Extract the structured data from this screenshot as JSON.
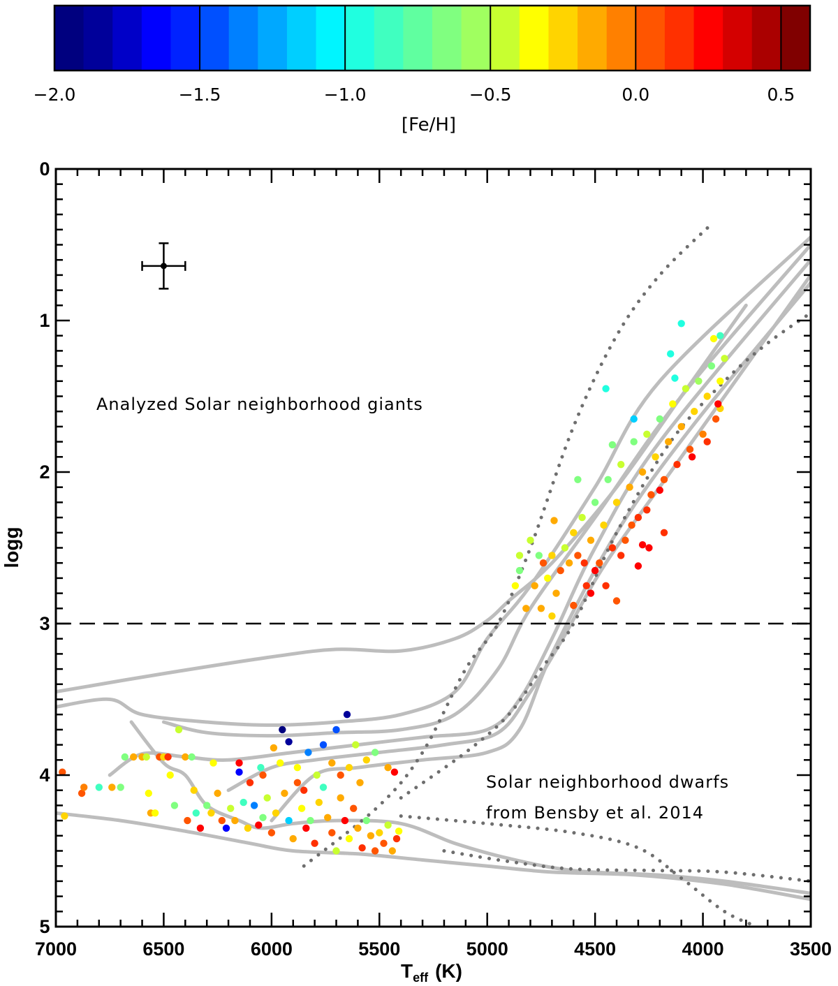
{
  "colorbar": {
    "label": "[Fe/H]",
    "range": [
      -2.0,
      0.6
    ],
    "n_bins": 26,
    "ticks": [
      -2.0,
      -1.5,
      -1.0,
      -0.5,
      0.0,
      0.5
    ],
    "tick_labels": [
      "−2.0",
      "−1.5",
      "−1.0",
      "−0.5",
      "0.0",
      "0.5"
    ],
    "bin_colors": [
      "#00007f",
      "#00009a",
      "#0000c8",
      "#0000ff",
      "#0022ff",
      "#0050ff",
      "#0080ff",
      "#00a8ff",
      "#00cfff",
      "#00f5ff",
      "#20ffe0",
      "#40ffc0",
      "#60ffa0",
      "#80ff80",
      "#a0ff60",
      "#c8ff30",
      "#ffff00",
      "#ffd400",
      "#ffaa00",
      "#ff8000",
      "#ff5500",
      "#ff3000",
      "#ff0000",
      "#d40000",
      "#aa0000",
      "#800000"
    ]
  },
  "chart_data": {
    "type": "scatter",
    "xlabel_main": "T",
    "xlabel_sub": "eff",
    "xlabel_unit": "(K)",
    "ylabel": "logg",
    "xlim": [
      7000,
      3500
    ],
    "ylim": [
      5,
      0
    ],
    "x_ticks": [
      7000,
      6500,
      6000,
      5500,
      5000,
      4500,
      4000,
      3500
    ],
    "y_ticks": [
      0,
      1,
      2,
      3,
      4,
      5
    ],
    "dashed_line_logg": 3,
    "error_bar": {
      "teff": 6500,
      "logg": 0.64,
      "teff_err": 100,
      "logg_err": 0.15
    },
    "annotations": [
      "Analyzed Solar neighborhood giants",
      "Solar neighborhood dwarfs",
      "from Bensby et al. 2014"
    ],
    "isochrones": [
      [
        [
          7000,
          3.45
        ],
        [
          6500,
          3.33
        ],
        [
          6000,
          3.22
        ],
        [
          5700,
          3.17
        ],
        [
          5400,
          3.18
        ],
        [
          5150,
          3.1
        ],
        [
          5000,
          2.98
        ],
        [
          4900,
          2.85
        ],
        [
          4700,
          2.6
        ],
        [
          4400,
          2.1
        ],
        [
          4100,
          1.5
        ],
        [
          3800,
          0.9
        ]
      ],
      [
        [
          7000,
          3.55
        ],
        [
          6750,
          3.5
        ],
        [
          6600,
          3.6
        ],
        [
          6300,
          3.65
        ],
        [
          6000,
          3.67
        ],
        [
          5700,
          3.65
        ],
        [
          5400,
          3.6
        ],
        [
          5150,
          3.45
        ],
        [
          5000,
          3.1
        ],
        [
          4800,
          2.75
        ],
        [
          4500,
          2.1
        ],
        [
          4200,
          1.4
        ],
        [
          3500,
          0.45
        ]
      ],
      [
        [
          6500,
          3.65
        ],
        [
          6300,
          3.72
        ],
        [
          6000,
          3.74
        ],
        [
          5700,
          3.72
        ],
        [
          5400,
          3.7
        ],
        [
          5150,
          3.6
        ],
        [
          4950,
          3.3
        ],
        [
          4800,
          2.9
        ],
        [
          4500,
          2.3
        ],
        [
          4100,
          1.5
        ],
        [
          3500,
          0.5
        ]
      ],
      [
        [
          6650,
          3.65
        ],
        [
          6500,
          3.92
        ],
        [
          6400,
          4.0
        ],
        [
          6300,
          4.2
        ],
        [
          6150,
          4.3
        ],
        [
          6050,
          4.35
        ],
        [
          5900,
          4.32
        ],
        [
          5700,
          4.3
        ],
        [
          5400,
          4.32
        ],
        [
          5150,
          4.45
        ],
        [
          4900,
          4.55
        ],
        [
          4600,
          4.63
        ],
        [
          4200,
          4.66
        ],
        [
          3900,
          4.7
        ],
        [
          3500,
          4.78
        ]
      ],
      [
        [
          6750,
          4.0
        ],
        [
          6600,
          3.86
        ],
        [
          6400,
          3.88
        ],
        [
          6200,
          3.9
        ],
        [
          5900,
          3.85
        ],
        [
          5600,
          3.8
        ],
        [
          5300,
          3.75
        ],
        [
          5000,
          3.7
        ],
        [
          4850,
          3.5
        ],
        [
          4700,
          3.1
        ],
        [
          4500,
          2.5
        ],
        [
          4200,
          1.8
        ],
        [
          3500,
          0.6
        ]
      ],
      [
        [
          6200,
          4.1
        ],
        [
          6000,
          3.95
        ],
        [
          5800,
          3.9
        ],
        [
          5500,
          3.85
        ],
        [
          5200,
          3.8
        ],
        [
          4950,
          3.72
        ],
        [
          4800,
          3.45
        ],
        [
          4650,
          3.1
        ],
        [
          4450,
          2.6
        ],
        [
          4100,
          1.9
        ],
        [
          3500,
          0.7
        ]
      ],
      [
        [
          7000,
          4.25
        ],
        [
          6700,
          4.3
        ],
        [
          6400,
          4.37
        ],
        [
          6100,
          4.45
        ],
        [
          5900,
          4.5
        ],
        [
          5600,
          4.52
        ],
        [
          5300,
          4.56
        ],
        [
          5000,
          4.6
        ],
        [
          4700,
          4.64
        ],
        [
          4300,
          4.66
        ],
        [
          3900,
          4.72
        ],
        [
          3500,
          4.82
        ]
      ],
      [
        [
          6000,
          4.3
        ],
        [
          5800,
          4.0
        ],
        [
          5600,
          3.95
        ],
        [
          5300,
          3.9
        ],
        [
          5000,
          3.85
        ],
        [
          4850,
          3.7
        ],
        [
          4700,
          3.2
        ],
        [
          4400,
          2.4
        ],
        [
          4050,
          1.7
        ],
        [
          3500,
          0.75
        ]
      ]
    ],
    "dotted_bounds": [
      [
        [
          5850,
          4.6
        ],
        [
          5500,
          4.2
        ],
        [
          5300,
          3.85
        ],
        [
          5100,
          3.3
        ],
        [
          4950,
          3.0
        ],
        [
          4800,
          2.5
        ],
        [
          4600,
          1.7
        ],
        [
          4400,
          1.1
        ],
        [
          4200,
          0.7
        ],
        [
          3950,
          0.35
        ]
      ],
      [
        [
          5400,
          4.15
        ],
        [
          5100,
          3.85
        ],
        [
          4900,
          3.6
        ],
        [
          4750,
          3.3
        ],
        [
          4600,
          3.0
        ],
        [
          4400,
          2.4
        ],
        [
          4150,
          1.8
        ],
        [
          3900,
          1.4
        ],
        [
          3700,
          1.15
        ],
        [
          3500,
          0.95
        ]
      ],
      [
        [
          5200,
          4.5
        ],
        [
          4900,
          4.57
        ],
        [
          4600,
          4.62
        ],
        [
          4200,
          4.63
        ],
        [
          3900,
          4.64
        ],
        [
          3500,
          4.7
        ]
      ],
      [
        [
          5400,
          4.27
        ],
        [
          5000,
          4.32
        ],
        [
          4600,
          4.38
        ],
        [
          4300,
          4.48
        ],
        [
          4100,
          4.68
        ],
        [
          3900,
          4.9
        ],
        [
          3750,
          5.0
        ]
      ]
    ],
    "points": [
      [
        6970,
        3.98,
        0.0
      ],
      [
        6960,
        4.27,
        -0.3
      ],
      [
        6880,
        4.12,
        0.05
      ],
      [
        6870,
        4.08,
        -0.05
      ],
      [
        6800,
        4.08,
        -0.8
      ],
      [
        6740,
        4.08,
        -0.2
      ],
      [
        6700,
        4.08,
        -0.7
      ],
      [
        6680,
        3.88,
        -0.6
      ],
      [
        6640,
        3.88,
        -0.1
      ],
      [
        6600,
        3.88,
        -0.2
      ],
      [
        6580,
        3.88,
        -0.5
      ],
      [
        6570,
        4.12,
        -0.4
      ],
      [
        6560,
        4.25,
        -0.1
      ],
      [
        6540,
        4.25,
        -0.35
      ],
      [
        6520,
        3.88,
        0.05
      ],
      [
        6500,
        3.88,
        -0.3
      ],
      [
        6480,
        3.88,
        0.1
      ],
      [
        6470,
        4.0,
        -0.4
      ],
      [
        6450,
        4.2,
        -0.6
      ],
      [
        6430,
        3.7,
        -0.5
      ],
      [
        6400,
        3.88,
        -0.2
      ],
      [
        6390,
        4.3,
        0.05
      ],
      [
        6370,
        3.88,
        -0.6
      ],
      [
        6360,
        4.1,
        -0.3
      ],
      [
        6350,
        4.25,
        -0.9
      ],
      [
        6330,
        4.35,
        0.2
      ],
      [
        6300,
        4.2,
        -0.7
      ],
      [
        6280,
        4.25,
        -0.3
      ],
      [
        6270,
        3.92,
        -0.4
      ],
      [
        6250,
        4.12,
        -0.2
      ],
      [
        6230,
        4.3,
        0.0
      ],
      [
        6210,
        4.35,
        -1.6
      ],
      [
        6190,
        4.22,
        -0.5
      ],
      [
        6170,
        4.3,
        -0.1
      ],
      [
        6150,
        3.92,
        0.3
      ],
      [
        6130,
        4.18,
        -0.8
      ],
      [
        6110,
        4.35,
        -0.3
      ],
      [
        6100,
        4.05,
        0.1
      ],
      [
        6080,
        4.2,
        -1.4
      ],
      [
        6060,
        4.33,
        0.2
      ],
      [
        6040,
        4.28,
        -0.6
      ],
      [
        6020,
        4.15,
        -0.5
      ],
      [
        6000,
        4.38,
        0.05
      ],
      [
        5980,
        4.25,
        -0.3
      ],
      [
        5960,
        3.92,
        -0.4
      ],
      [
        5940,
        4.12,
        -0.1
      ],
      [
        5920,
        4.3,
        -1.1
      ],
      [
        5900,
        4.42,
        -0.2
      ],
      [
        5880,
        4.05,
        0.0
      ],
      [
        5860,
        4.22,
        -0.4
      ],
      [
        5840,
        4.35,
        0.25
      ],
      [
        5820,
        4.3,
        -0.6
      ],
      [
        5800,
        4.45,
        0.1
      ],
      [
        5780,
        4.18,
        -0.3
      ],
      [
        5760,
        4.08,
        -0.9
      ],
      [
        5740,
        4.28,
        -0.2
      ],
      [
        5720,
        4.38,
        0.05
      ],
      [
        5700,
        4.5,
        -0.5
      ],
      [
        5680,
        4.15,
        -0.1
      ],
      [
        5660,
        4.3,
        0.2
      ],
      [
        5640,
        4.42,
        -0.4
      ],
      [
        5620,
        4.22,
        0.0
      ],
      [
        5600,
        4.35,
        -0.2
      ],
      [
        5580,
        4.48,
        0.1
      ],
      [
        5560,
        4.3,
        -0.6
      ],
      [
        5540,
        4.4,
        -0.1
      ],
      [
        5520,
        4.5,
        0.05
      ],
      [
        5500,
        4.38,
        -0.3
      ],
      [
        5480,
        4.45,
        0.0
      ],
      [
        5460,
        4.33,
        -0.5
      ],
      [
        5440,
        4.5,
        -0.2
      ],
      [
        5420,
        4.42,
        0.1
      ],
      [
        5410,
        4.37,
        -0.35
      ],
      [
        6150,
        3.98,
        -1.7
      ],
      [
        6050,
        3.95,
        -0.8
      ],
      [
        5950,
        3.7,
        -1.95
      ],
      [
        5920,
        3.78,
        -1.85
      ],
      [
        5830,
        3.85,
        -1.3
      ],
      [
        5760,
        3.8,
        -1.45
      ],
      [
        5700,
        3.7,
        -1.5
      ],
      [
        5650,
        3.6,
        -1.85
      ],
      [
        5610,
        3.8,
        -0.5
      ],
      [
        5560,
        3.9,
        -0.3
      ],
      [
        5520,
        3.85,
        -0.7
      ],
      [
        5460,
        3.95,
        -0.1
      ],
      [
        5430,
        3.98,
        0.2
      ],
      [
        5990,
        3.82,
        -0.2
      ],
      [
        6040,
        4.0,
        0.05
      ],
      [
        5880,
        3.95,
        -0.4
      ],
      [
        5850,
        4.1,
        0.15
      ],
      [
        5790,
        4.0,
        -0.5
      ],
      [
        5720,
        3.92,
        -0.1
      ],
      [
        5680,
        4.0,
        0.0
      ],
      [
        5640,
        3.95,
        -0.3
      ],
      [
        5590,
        4.05,
        -0.2
      ],
      [
        4800,
        2.45,
        -0.5
      ],
      [
        4780,
        2.75,
        -0.2
      ],
      [
        4760,
        2.55,
        -0.6
      ],
      [
        4750,
        2.9,
        -0.15
      ],
      [
        4740,
        2.6,
        0.0
      ],
      [
        4720,
        2.7,
        -0.4
      ],
      [
        4700,
        2.55,
        -0.3
      ],
      [
        4680,
        2.8,
        -0.1
      ],
      [
        4660,
        2.65,
        0.05
      ],
      [
        4640,
        2.5,
        -0.45
      ],
      [
        4620,
        2.6,
        -0.2
      ],
      [
        4600,
        2.4,
        -0.3
      ],
      [
        4580,
        2.55,
        0.0
      ],
      [
        4560,
        2.3,
        -0.5
      ],
      [
        4540,
        2.75,
        0.1
      ],
      [
        4520,
        2.45,
        -0.15
      ],
      [
        4500,
        2.2,
        -0.6
      ],
      [
        4480,
        2.6,
        0.05
      ],
      [
        4460,
        2.35,
        -0.25
      ],
      [
        4440,
        2.05,
        -0.7
      ],
      [
        4420,
        2.5,
        0.15
      ],
      [
        4400,
        2.2,
        -0.3
      ],
      [
        4380,
        1.95,
        -0.5
      ],
      [
        4360,
        2.45,
        0.0
      ],
      [
        4340,
        2.1,
        -0.2
      ],
      [
        4320,
        1.8,
        -0.7
      ],
      [
        4300,
        2.3,
        0.1
      ],
      [
        4280,
        2.0,
        -0.15
      ],
      [
        4260,
        1.75,
        -0.45
      ],
      [
        4240,
        2.15,
        0.0
      ],
      [
        4220,
        1.9,
        -0.3
      ],
      [
        4200,
        1.65,
        -0.6
      ],
      [
        4180,
        2.05,
        0.05
      ],
      [
        4160,
        1.8,
        -0.2
      ],
      [
        4140,
        1.55,
        -0.4
      ],
      [
        4120,
        1.95,
        0.1
      ],
      [
        4100,
        1.7,
        -0.1
      ],
      [
        4080,
        1.45,
        -0.5
      ],
      [
        4060,
        1.85,
        0.0
      ],
      [
        4040,
        1.6,
        -0.3
      ],
      [
        4020,
        1.4,
        -0.55
      ],
      [
        4000,
        1.75,
        -0.05
      ],
      [
        3980,
        1.5,
        -0.25
      ],
      [
        3960,
        1.3,
        -0.6
      ],
      [
        3940,
        1.65,
        0.0
      ],
      [
        3920,
        1.4,
        -0.35
      ],
      [
        3900,
        1.25,
        -0.5
      ],
      [
        4450,
        1.45,
        -1.0
      ],
      [
        4130,
        1.38,
        -1.0
      ],
      [
        4100,
        1.02,
        -1.0
      ],
      [
        4150,
        1.22,
        -1.0
      ],
      [
        3920,
        1.1,
        -0.9
      ],
      [
        3950,
        1.12,
        -0.4
      ],
      [
        4320,
        1.65,
        -1.2
      ],
      [
        4300,
        2.62,
        0.2
      ],
      [
        4280,
        2.48,
        0.2
      ],
      [
        4250,
        2.5,
        0.25
      ],
      [
        4500,
        2.65,
        0.3
      ],
      [
        4520,
        2.8,
        0.2
      ],
      [
        4550,
        2.6,
        0.1
      ],
      [
        4400,
        2.85,
        0.05
      ],
      [
        4450,
        2.75,
        0.15
      ],
      [
        4600,
        2.88,
        0.05
      ],
      [
        4700,
        2.95,
        -0.3
      ],
      [
        4850,
        2.65,
        -0.6
      ],
      [
        4820,
        2.9,
        -0.2
      ],
      [
        4850,
        2.55,
        -0.5
      ],
      [
        4870,
        2.75,
        -0.4
      ],
      [
        4690,
        2.32,
        -0.1
      ],
      [
        4580,
        2.05,
        -0.6
      ],
      [
        4420,
        1.82,
        -0.7
      ],
      [
        4200,
        2.12,
        0.3
      ],
      [
        4050,
        1.9,
        0.25
      ],
      [
        3980,
        1.8,
        0.1
      ],
      [
        3920,
        1.58,
        -0.3
      ],
      [
        3930,
        1.55,
        0.2
      ],
      [
        4380,
        2.55,
        0.1
      ],
      [
        4330,
        2.35,
        0.05
      ],
      [
        4260,
        2.25,
        0.15
      ],
      [
        4180,
        2.4,
        0.1
      ]
    ]
  }
}
